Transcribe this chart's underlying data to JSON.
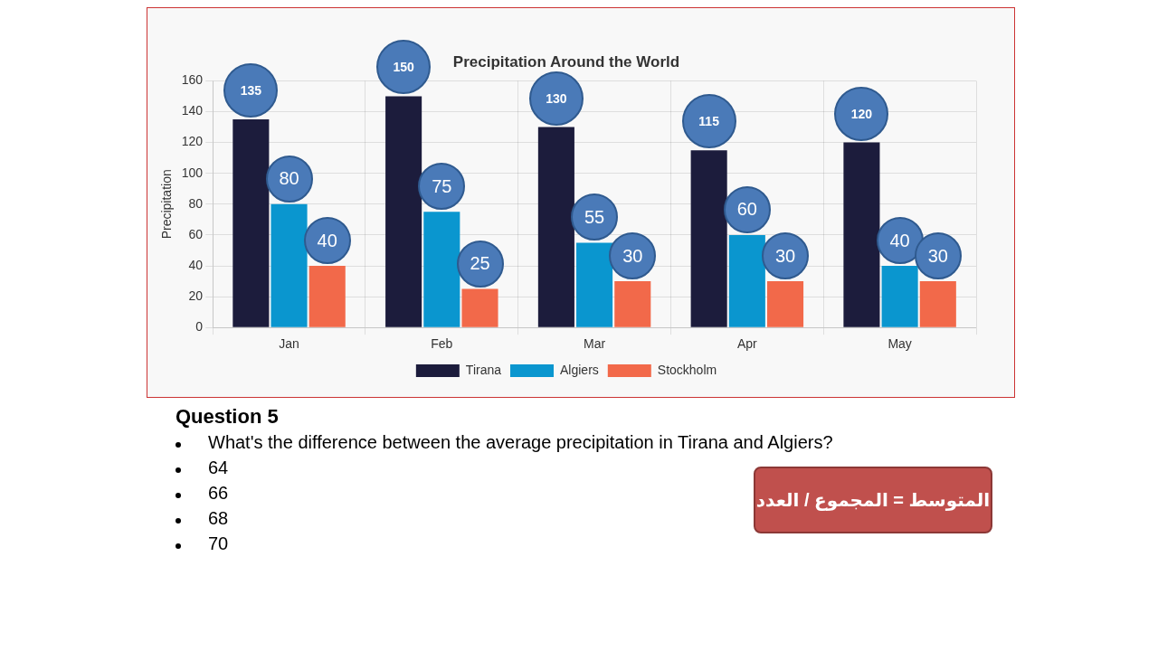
{
  "chart_data": {
    "type": "bar",
    "title": "Precipitation Around the World",
    "ylabel": "Precipitation",
    "categories": [
      "Jan",
      "Feb",
      "Mar",
      "Apr",
      "May"
    ],
    "series": [
      {
        "name": "Tirana",
        "color": "#1c1c3c",
        "values": [
          135,
          150,
          130,
          115,
          120
        ]
      },
      {
        "name": "Algiers",
        "color": "#0a96cf",
        "values": [
          80,
          75,
          55,
          60,
          40
        ]
      },
      {
        "name": "Stockholm",
        "color": "#f2694a",
        "values": [
          40,
          25,
          30,
          30,
          30
        ]
      }
    ],
    "ylim": [
      0,
      160
    ],
    "yticks": [
      0,
      20,
      40,
      60,
      80,
      100,
      120,
      140,
      160
    ],
    "grid": true,
    "legend": "bottom",
    "data_labels": true,
    "annotations": [
      "Question 5",
      "What's the difference between the average precipitation in Tirana and Algiers?",
      "64",
      "66",
      "68",
      "70",
      "المتوسط = المجموع / العدد"
    ]
  }
}
